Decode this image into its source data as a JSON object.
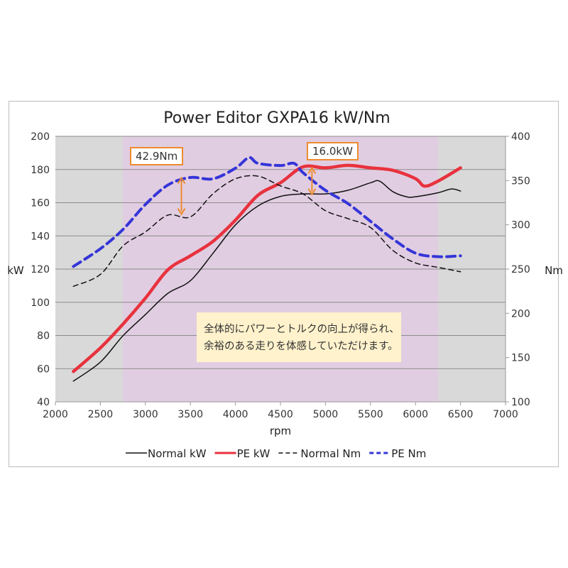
{
  "chart_data": {
    "type": "line",
    "title": "Power Editor GXPA16 kW/Nm",
    "xlabel": "rpm",
    "ylabel": "kW",
    "y2label": "Nm",
    "xlim": [
      2000,
      7000
    ],
    "ylim": [
      40,
      200
    ],
    "y2lim": [
      100,
      400
    ],
    "xticks": [
      2000,
      2500,
      3000,
      3500,
      4000,
      4500,
      5000,
      5500,
      6000,
      6500,
      7000
    ],
    "yticks": [
      40,
      60,
      80,
      100,
      120,
      140,
      160,
      180,
      200
    ],
    "y2ticks": [
      100,
      150,
      200,
      250,
      300,
      350,
      400
    ],
    "grid": true,
    "legend_position": "bottom",
    "highlight_range": [
      2750,
      6250
    ],
    "colors": {
      "plot_bg": "#d9d9d9",
      "highlight": "#e1cde1",
      "normal_kw": "#111111",
      "pe_kw": "#e8323e",
      "normal_nm": "#111111",
      "pe_nm": "#3535d8",
      "annotation": "#ed8b2f",
      "note_bg": "#fff2cc"
    },
    "series": [
      {
        "name": "Normal kW",
        "axis": "left",
        "style": "solid",
        "x": [
          2200,
          2500,
          2750,
          3000,
          3250,
          3500,
          3750,
          4000,
          4250,
          4500,
          4750,
          5000,
          5250,
          5500,
          5600,
          5750,
          5900,
          6000,
          6250,
          6400,
          6500
        ],
        "y": [
          52.5,
          64,
          79.8,
          92.6,
          105.4,
          113,
          129.5,
          146.6,
          158,
          163.8,
          165.3,
          165.3,
          167.5,
          172,
          173,
          166.6,
          163.6,
          163.6,
          166,
          168.3,
          167
        ]
      },
      {
        "name": "PE kW",
        "axis": "left",
        "style": "solid-thick",
        "x": [
          2200,
          2500,
          2750,
          3000,
          3250,
          3500,
          3750,
          4000,
          4250,
          4500,
          4750,
          5000,
          5250,
          5500,
          5750,
          6000,
          6100,
          6250,
          6500
        ],
        "y": [
          58.3,
          72.5,
          86.8,
          102.5,
          119.6,
          128,
          136.7,
          149.5,
          164.5,
          172,
          181.6,
          181,
          182.5,
          181,
          179.5,
          174.5,
          170,
          173,
          181
        ]
      },
      {
        "name": "Normal Nm",
        "axis": "right",
        "style": "dashed",
        "x": [
          2200,
          2500,
          2750,
          3000,
          3250,
          3500,
          3750,
          4000,
          4250,
          4500,
          4750,
          5000,
          5250,
          5500,
          5750,
          6000,
          6250,
          6500
        ],
        "y": [
          230.5,
          244,
          276,
          292,
          311,
          309,
          335,
          352,
          355,
          344,
          335,
          316,
          307,
          297,
          271,
          257,
          252,
          247
        ]
      },
      {
        "name": "PE Nm",
        "axis": "right",
        "style": "dashed-thick",
        "x": [
          2200,
          2500,
          2750,
          3000,
          3250,
          3500,
          3750,
          4000,
          4150,
          4250,
          4500,
          4650,
          4750,
          5000,
          5250,
          5500,
          5750,
          6000,
          6250,
          6500
        ],
        "y": [
          253,
          273,
          294.7,
          323,
          345,
          353.5,
          352,
          364,
          376,
          369.5,
          367,
          369.5,
          359,
          339,
          324,
          304,
          284,
          268,
          264,
          265
        ]
      }
    ],
    "annotations": [
      {
        "text": "42.9Nm",
        "x": 3400,
        "axis": "right",
        "from": 312,
        "to": 353
      },
      {
        "text": "16.0kW",
        "x": 4850,
        "axis": "left",
        "from": 165,
        "to": 181
      }
    ],
    "note": [
      "全体的にパワーとトルクの向上が得られ、",
      "余裕のある走りを体感していただけます。"
    ]
  }
}
